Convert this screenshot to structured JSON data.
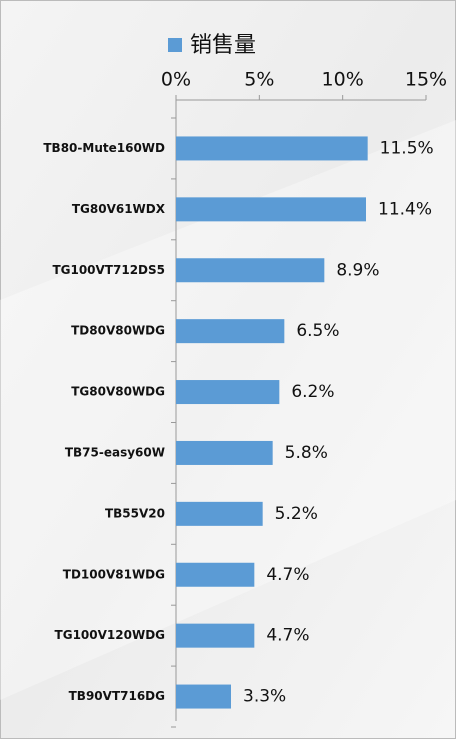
{
  "chart_data": {
    "type": "bar",
    "orientation": "horizontal",
    "legend": "top",
    "series": [
      {
        "name": "销售量",
        "color": "#5b9bd5",
        "values": [
          11.5,
          11.4,
          8.9,
          6.5,
          6.2,
          5.8,
          5.2,
          4.7,
          4.7,
          3.3
        ],
        "value_labels": [
          "11.5%",
          "11.4%",
          "8.9%",
          "6.5%",
          "6.2%",
          "5.8%",
          "5.2%",
          "4.7%",
          "4.7%",
          "3.3%"
        ]
      }
    ],
    "categories": [
      "TB80-Mute160WD",
      "TG80V61WDX",
      "TG100VT712DS5",
      "TD80V80WDG",
      "TG80V80WDG",
      "TB75-easy60W",
      "TB55V20",
      "TD100V81WDG",
      "TG100V120WDG",
      "TB90VT716DG"
    ],
    "xlim": [
      0,
      15
    ],
    "xticks": [
      {
        "value": 0,
        "label": "0%"
      },
      {
        "value": 5,
        "label": "5%"
      },
      {
        "value": 10,
        "label": "10%"
      },
      {
        "value": 15,
        "label": "15%"
      }
    ]
  }
}
